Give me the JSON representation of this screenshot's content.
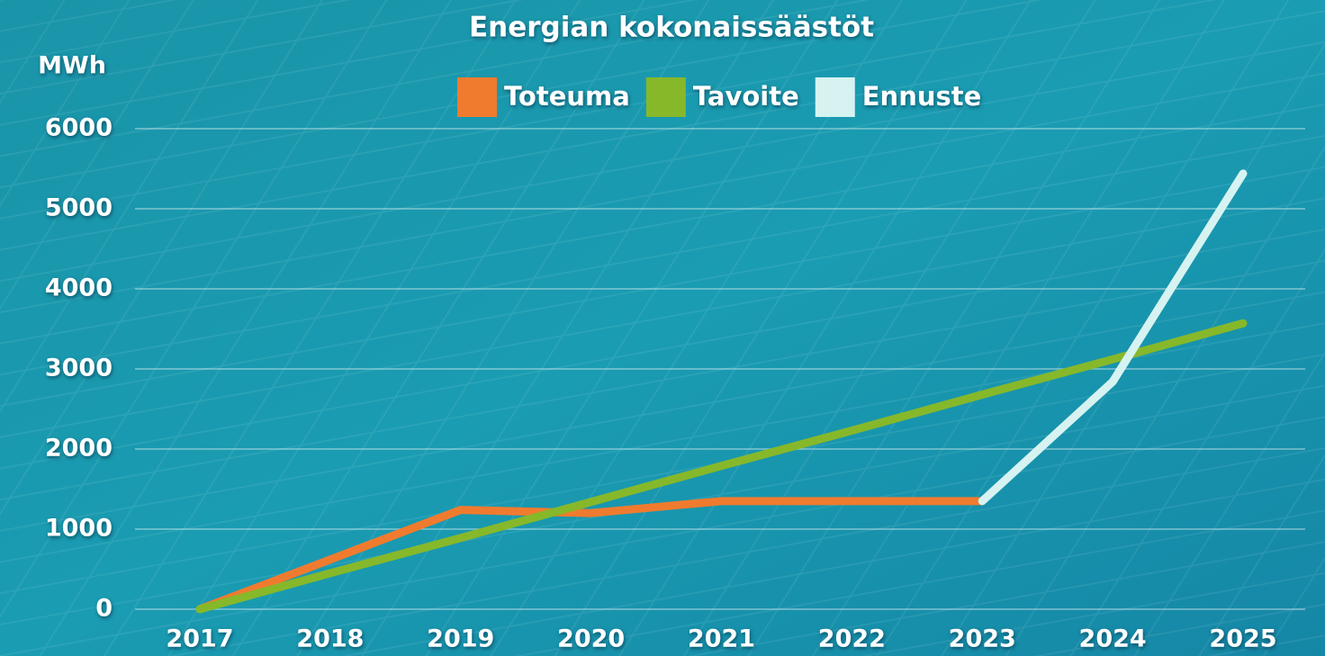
{
  "chart_data": {
    "type": "line",
    "title": "Energian kokonaissäästöt",
    "y_label": "MWh",
    "categories": [
      "2017",
      "2018",
      "2019",
      "2020",
      "2021",
      "2022",
      "2023",
      "2024",
      "2025"
    ],
    "series": [
      {
        "name": "Toteuma",
        "color": "#f07b2e",
        "values": [
          0,
          620,
          1240,
          1200,
          1350,
          1350,
          1350,
          null,
          null
        ]
      },
      {
        "name": "Tavoite",
        "color": "#86b82a",
        "values": [
          0,
          450,
          890,
          1340,
          1790,
          2230,
          2680,
          3120,
          3570
        ]
      },
      {
        "name": "Ennuste",
        "color": "#d6f3f1",
        "values": [
          null,
          null,
          null,
          null,
          null,
          null,
          1350,
          2840,
          5440
        ]
      }
    ],
    "ylim": [
      0,
      6000
    ],
    "yticks": [
      0,
      1000,
      2000,
      3000,
      4000,
      5000,
      6000
    ],
    "grid": true
  }
}
